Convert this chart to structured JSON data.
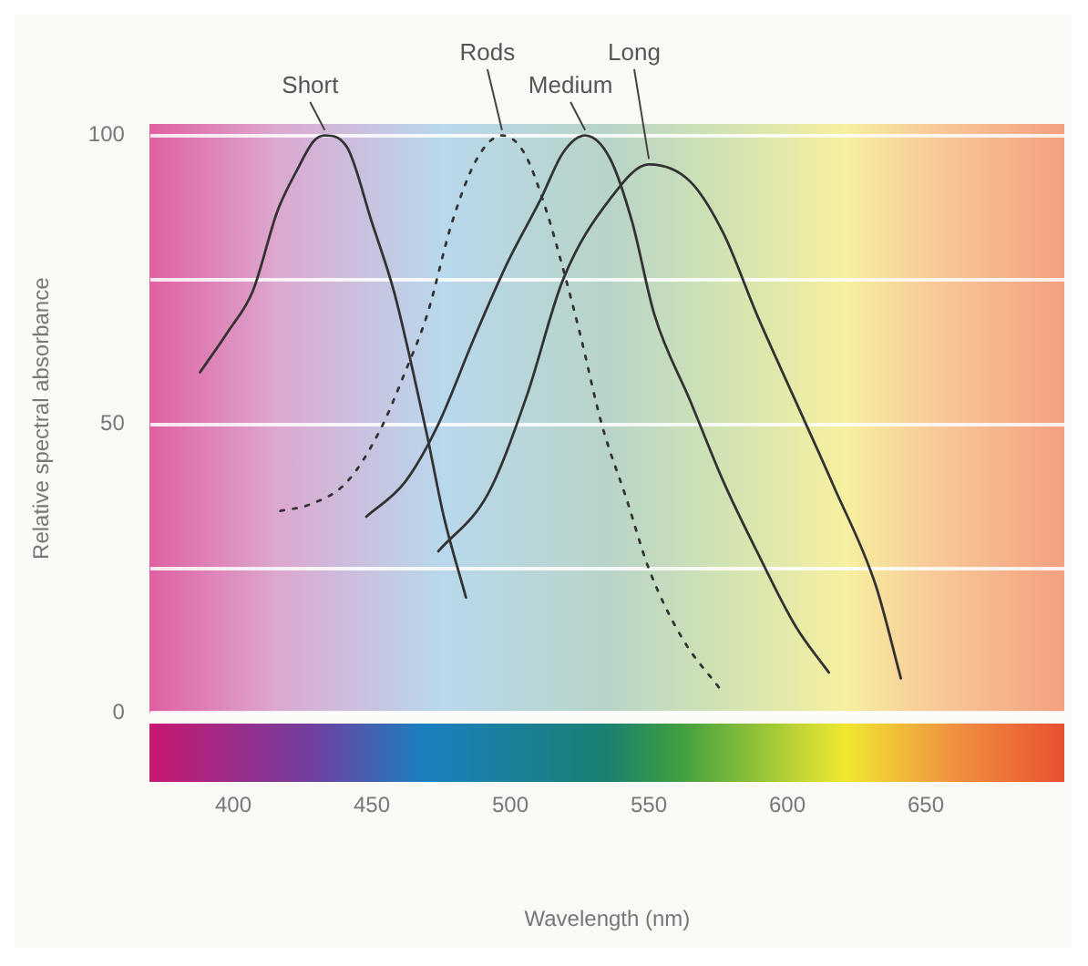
{
  "chart_data": {
    "type": "line",
    "xlabel": "Wavelength (nm)",
    "ylabel": "Relative spectral absorbance",
    "xlim": [
      370,
      700
    ],
    "xticks": [
      400,
      450,
      500,
      550,
      600,
      650
    ],
    "ylim": [
      0,
      102
    ],
    "yticks": [
      0,
      {
        "value": 25,
        "label": null
      },
      50,
      {
        "value": 75,
        "label": null
      },
      100
    ],
    "grid": "y",
    "legend": false,
    "marker": "none",
    "series": [
      {
        "name": "Short",
        "color": "#333333",
        "line_style": "solid",
        "x": [
          388,
          398,
          407,
          416,
          423,
          429,
          433,
          441,
          450,
          458,
          464,
          470,
          476,
          484
        ],
        "values": [
          59,
          66,
          73,
          87,
          94,
          99,
          100,
          98,
          85,
          73,
          61,
          48,
          34,
          20
        ]
      },
      {
        "name": "Rods",
        "color": "#333333",
        "line_style": "dotted",
        "x": [
          417,
          427,
          441,
          453,
          462,
          470,
          479,
          488,
          497,
          505,
          513,
          519,
          525,
          533,
          542,
          550,
          562,
          576
        ],
        "values": [
          35,
          36,
          40,
          49,
          59,
          69,
          85,
          96,
          100,
          97,
          87,
          77,
          66,
          50,
          37,
          25,
          13,
          4
        ]
      },
      {
        "name": "Medium",
        "color": "#333333",
        "line_style": "solid",
        "x": [
          448,
          462,
          474,
          487,
          499,
          511,
          519,
          527,
          536,
          544,
          552,
          565,
          577,
          589,
          603,
          615
        ],
        "values": [
          34,
          40,
          50,
          65,
          78,
          89,
          97,
          100,
          96,
          85,
          69,
          54,
          40,
          28,
          15,
          7
        ]
      },
      {
        "name": "Long",
        "color": "#333333",
        "line_style": "solid",
        "x": [
          474,
          492,
          506,
          519,
          536,
          550,
          565,
          577,
          589,
          603,
          617,
          632,
          641
        ],
        "values": [
          28,
          38,
          55,
          75,
          89,
          95,
          92,
          83,
          69,
          54,
          39,
          22,
          6
        ]
      }
    ]
  }
}
